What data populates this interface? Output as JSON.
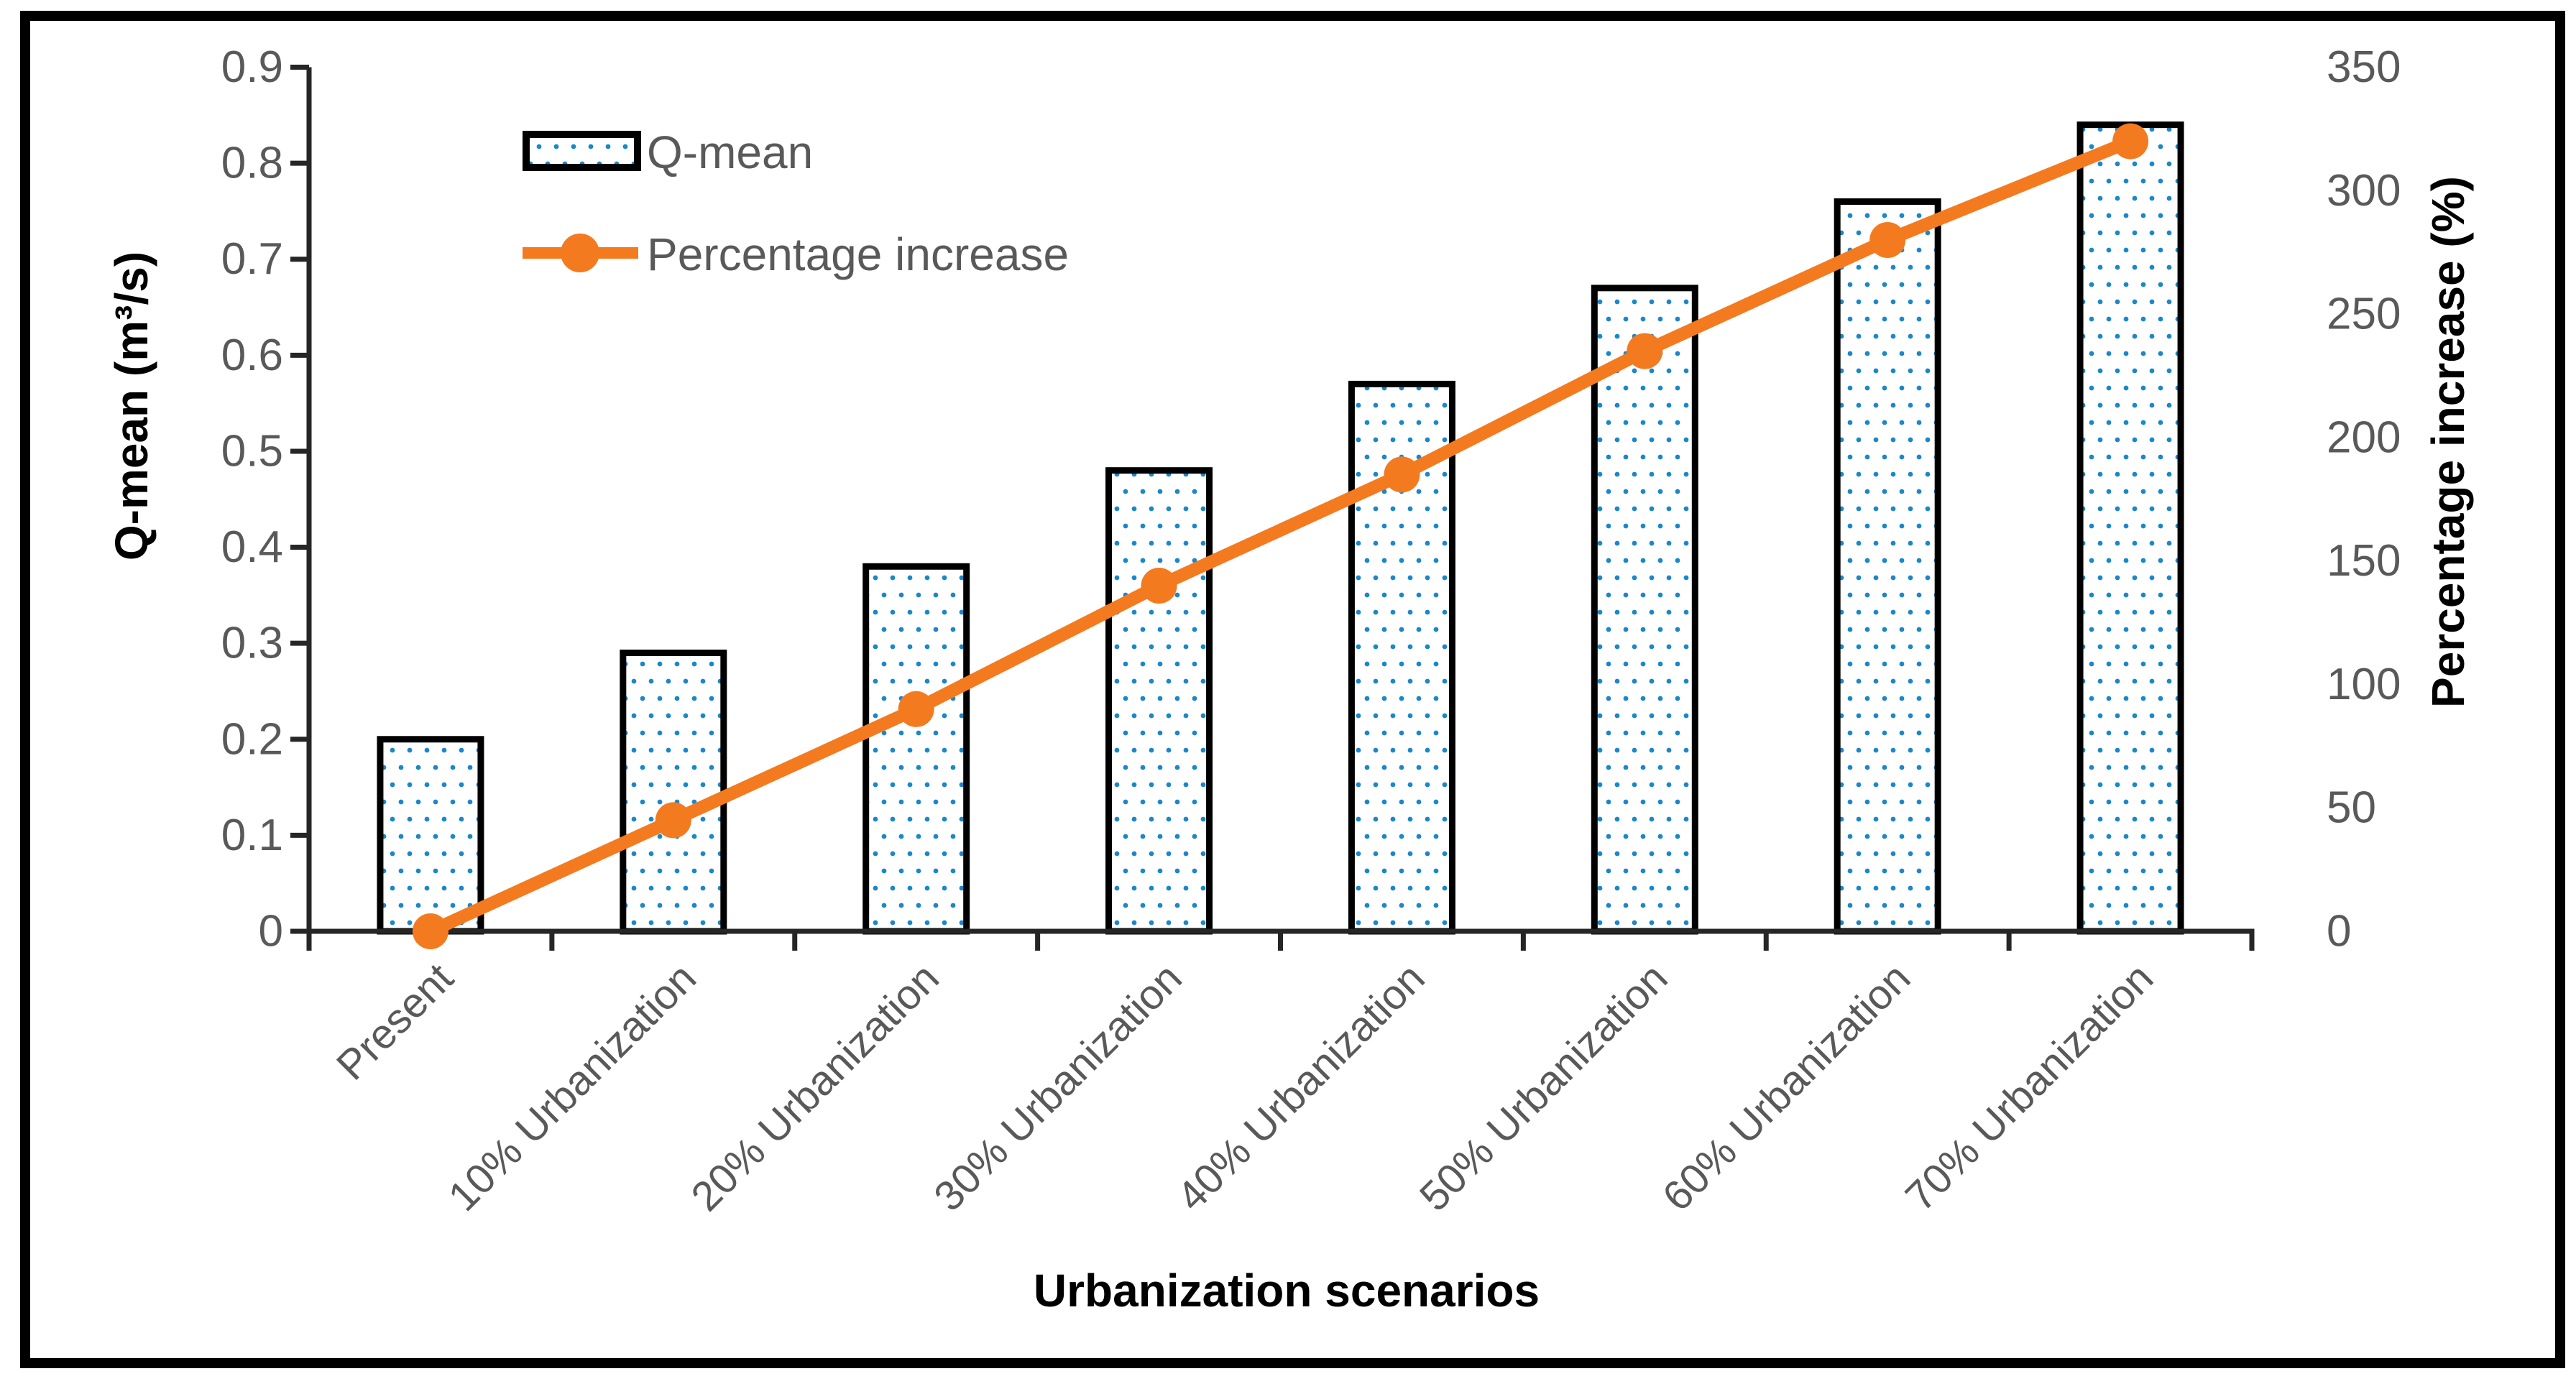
{
  "chart_data": {
    "type": "bar",
    "subtype": "combo-bar-line-dual-axis",
    "categories": [
      "Present",
      "10% Urbanization",
      "20% Urbanization",
      "30% Urbanization",
      "40% Urbanization",
      "50% Urbanization",
      "60% Urbanization",
      "70% Urbanization"
    ],
    "series": [
      {
        "name": "Q-mean",
        "type": "bar",
        "axis": "left",
        "values": [
          0.2,
          0.29,
          0.38,
          0.48,
          0.57,
          0.67,
          0.76,
          0.84
        ]
      },
      {
        "name": "Percentage increase",
        "type": "line",
        "axis": "right",
        "values": [
          0,
          45,
          90,
          140,
          185,
          235,
          280,
          320
        ]
      }
    ],
    "left_axis": {
      "title": "Q-mean (m³/s)",
      "min": 0,
      "max": 0.9,
      "tick_labels": [
        "0",
        "0.1",
        "0.2",
        "0.3",
        "0.4",
        "0.5",
        "0.6",
        "0.7",
        "0.8",
        "0.9"
      ]
    },
    "right_axis": {
      "title": "Percentage increase (%)",
      "min": 0,
      "max": 350,
      "tick_labels": [
        "0",
        "50",
        "100",
        "150",
        "200",
        "250",
        "300",
        "350"
      ]
    },
    "x_axis": {
      "title": "Urbanization scenarios"
    },
    "legend": {
      "position": "inside-top-left",
      "items": [
        "Q-mean",
        "Percentage increase"
      ]
    },
    "colors": {
      "line": "#F47A20",
      "bar_dot": "#1B87C9",
      "bar_border": "#000000",
      "tick_text": "#595959",
      "axis_line": "#262626",
      "axis_title_text": "#000000",
      "frame": "#000000"
    },
    "grid": false
  }
}
